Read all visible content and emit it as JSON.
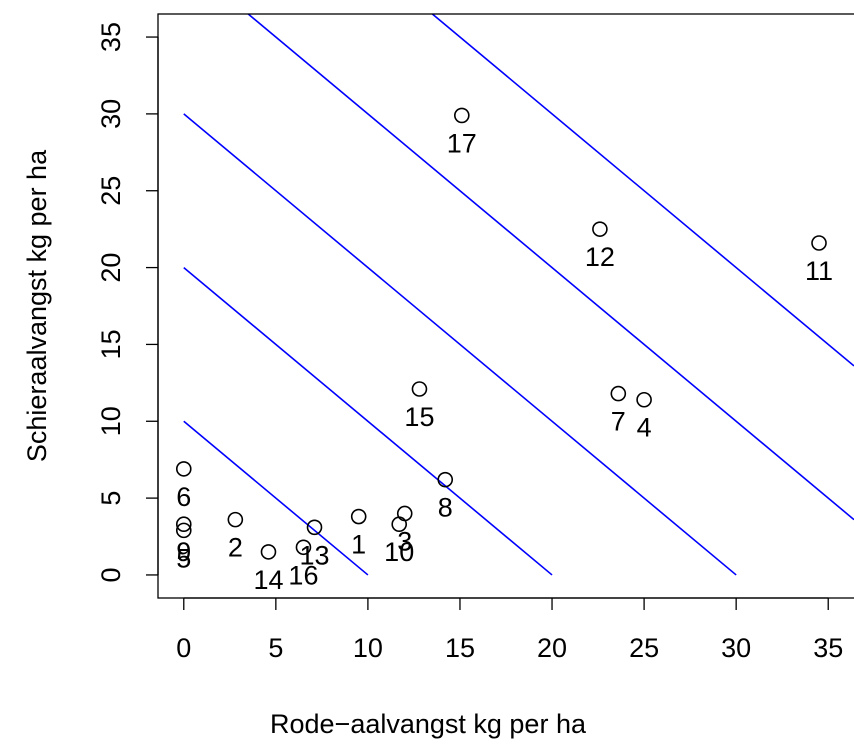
{
  "chart_data": {
    "type": "scatter",
    "title": "",
    "xlabel": "Rode−aalvangst  kg per ha",
    "ylabel": "Schieraalvangst  kg per ha",
    "xlim": [
      -1.4,
      36.4
    ],
    "ylim": [
      -1.5,
      36.5
    ],
    "x_ticks": [
      0,
      5,
      10,
      15,
      20,
      25,
      30,
      35
    ],
    "y_ticks": [
      0,
      5,
      10,
      15,
      20,
      25,
      30,
      35
    ],
    "grid": false,
    "marker": "open-circle",
    "points": [
      {
        "label": "1",
        "x": 9.5,
        "y": 3.8
      },
      {
        "label": "2",
        "x": 2.8,
        "y": 3.6
      },
      {
        "label": "3",
        "x": 12.0,
        "y": 4.0
      },
      {
        "label": "4",
        "x": 25.0,
        "y": 11.4
      },
      {
        "label": "5",
        "x": 0.0,
        "y": 2.9
      },
      {
        "label": "6",
        "x": 0.0,
        "y": 6.9
      },
      {
        "label": "7",
        "x": 23.6,
        "y": 11.8
      },
      {
        "label": "8",
        "x": 14.2,
        "y": 6.2
      },
      {
        "label": "9",
        "x": 0.0,
        "y": 3.3
      },
      {
        "label": "10",
        "x": 11.7,
        "y": 3.3
      },
      {
        "label": "11",
        "x": 34.5,
        "y": 21.6
      },
      {
        "label": "12",
        "x": 22.6,
        "y": 22.5
      },
      {
        "label": "13",
        "x": 7.1,
        "y": 3.1
      },
      {
        "label": "14",
        "x": 4.6,
        "y": 1.5
      },
      {
        "label": "15",
        "x": 12.8,
        "y": 12.1
      },
      {
        "label": "16",
        "x": 6.5,
        "y": 1.8
      },
      {
        "label": "17",
        "x": 15.1,
        "y": 29.9
      }
    ],
    "reference_lines": [
      {
        "sum": 10,
        "color": "#0000ff"
      },
      {
        "sum": 20,
        "color": "#0000ff"
      },
      {
        "sum": 30,
        "color": "#0000ff"
      },
      {
        "sum": 40,
        "color": "#0000ff"
      },
      {
        "sum": 50,
        "color": "#0000ff"
      }
    ],
    "colors": {
      "points": "#000000",
      "lines": "#0000ff",
      "axes": "#000000"
    }
  }
}
